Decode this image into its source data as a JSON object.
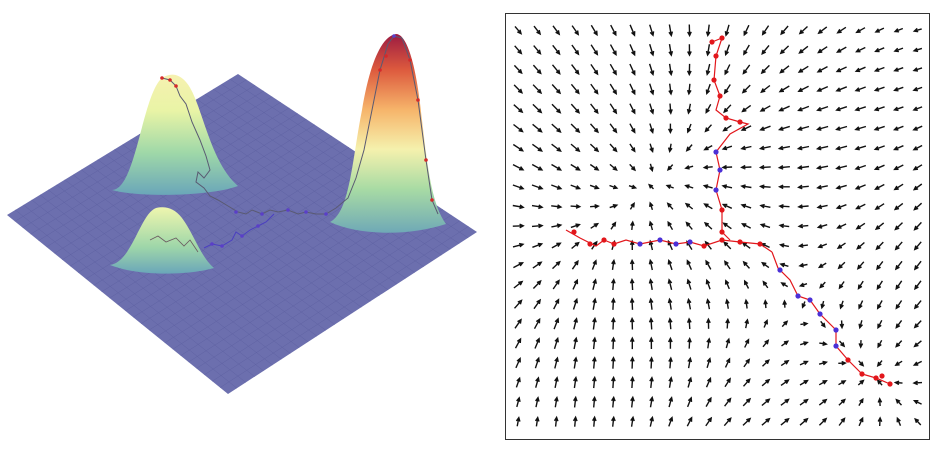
{
  "colors": {
    "background": "#ffffff",
    "plane": "#6c6fae",
    "plane_grid": "#5c5f9e",
    "peak_low": "#8ed1a8",
    "peak_mid": "#f6f5b4",
    "peak_high": "#e8703f",
    "peak_top": "#9a1740",
    "trajectory_early": "#4b2fd6",
    "trajectory_late": "#e2161b",
    "path_gray": "#5a5a72",
    "arrow": "#111111",
    "frame": "#333333"
  },
  "panels": {
    "left": {
      "content": "3d-surface-with-trajectory",
      "peaks": 3
    },
    "right": {
      "content": "vector-field-with-trajectory",
      "axes_ticks": "none"
    }
  }
}
